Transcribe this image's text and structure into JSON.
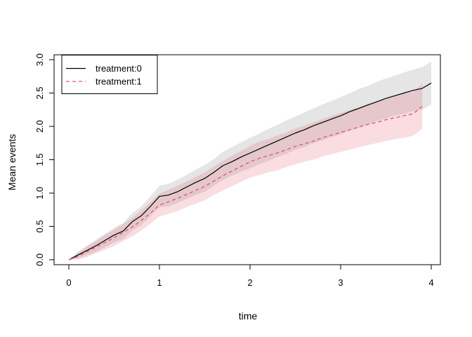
{
  "figure": {
    "xlabel": "time",
    "ylabel": "Mean events"
  },
  "legend": {
    "items": [
      {
        "label": "treatment:0",
        "color": "#000000",
        "style": "solid"
      },
      {
        "label": "treatment:1",
        "color": "#DF536B",
        "style": "dashed"
      }
    ]
  },
  "chart_data": {
    "type": "line",
    "title": "",
    "xlabel": "time",
    "ylabel": "Mean events",
    "legend_position": "topleft",
    "grid": false,
    "x_ticks": [
      0,
      1,
      2,
      3,
      4
    ],
    "x_tick_labels": [
      "0",
      "1",
      "2",
      "3",
      "4"
    ],
    "y_ticks": [
      0,
      0.5,
      1.0,
      1.5,
      2.0,
      2.5,
      3.0
    ],
    "y_tick_labels": [
      "0.0",
      "0.5",
      "1.0",
      "1.5",
      "2.0",
      "2.5",
      "3.0"
    ],
    "xlim": [
      -0.163,
      4.101
    ],
    "ylim": [
      -0.074,
      3.074
    ],
    "series": [
      {
        "name": "treatment:0",
        "color": "#000000",
        "line": "solid",
        "band_color": "rgba(0,0,0,0.10)",
        "x": [
          0,
          0.1,
          0.2,
          0.3,
          0.4,
          0.5,
          0.6,
          0.7,
          0.8,
          0.9,
          1.0,
          1.1,
          1.2,
          1.3,
          1.4,
          1.5,
          1.6,
          1.7,
          1.8,
          1.9,
          2.0,
          2.1,
          2.2,
          2.3,
          2.4,
          2.5,
          2.6,
          2.7,
          2.8,
          2.9,
          3.0,
          3.1,
          3.2,
          3.3,
          3.4,
          3.5,
          3.6,
          3.7,
          3.8,
          3.9,
          4.0
        ],
        "y": [
          0,
          0.07,
          0.14,
          0.21,
          0.29,
          0.37,
          0.43,
          0.57,
          0.66,
          0.8,
          0.95,
          0.97,
          1.02,
          1.09,
          1.16,
          1.22,
          1.31,
          1.41,
          1.47,
          1.54,
          1.6,
          1.66,
          1.72,
          1.78,
          1.84,
          1.9,
          1.95,
          2.01,
          2.06,
          2.11,
          2.16,
          2.22,
          2.27,
          2.32,
          2.37,
          2.42,
          2.46,
          2.5,
          2.54,
          2.57,
          2.65
        ],
        "upper": [
          0,
          0.12,
          0.21,
          0.3,
          0.39,
          0.48,
          0.55,
          0.7,
          0.8,
          0.95,
          1.11,
          1.14,
          1.2,
          1.27,
          1.35,
          1.42,
          1.51,
          1.62,
          1.69,
          1.76,
          1.83,
          1.89,
          1.96,
          2.02,
          2.09,
          2.15,
          2.21,
          2.27,
          2.33,
          2.38,
          2.44,
          2.5,
          2.56,
          2.61,
          2.67,
          2.72,
          2.76,
          2.81,
          2.85,
          2.89,
          2.97
        ],
        "lower": [
          0,
          0.02,
          0.07,
          0.12,
          0.19,
          0.26,
          0.31,
          0.44,
          0.52,
          0.65,
          0.79,
          0.8,
          0.85,
          0.91,
          0.97,
          1.02,
          1.11,
          1.2,
          1.26,
          1.32,
          1.37,
          1.43,
          1.48,
          1.54,
          1.59,
          1.65,
          1.69,
          1.75,
          1.79,
          1.84,
          1.88,
          1.94,
          1.98,
          2.03,
          2.08,
          2.12,
          2.16,
          2.19,
          2.23,
          2.25,
          2.33
        ]
      },
      {
        "name": "treatment:1",
        "color": "#DF536B",
        "line": "dashed",
        "band_color": "rgba(223,83,107,0.20)",
        "x": [
          0,
          0.1,
          0.2,
          0.3,
          0.4,
          0.5,
          0.6,
          0.7,
          0.8,
          0.9,
          1.0,
          1.1,
          1.2,
          1.3,
          1.4,
          1.5,
          1.6,
          1.7,
          1.8,
          1.9,
          2.0,
          2.1,
          2.2,
          2.3,
          2.4,
          2.5,
          2.6,
          2.7,
          2.8,
          2.9,
          3.0,
          3.1,
          3.2,
          3.3,
          3.4,
          3.5,
          3.6,
          3.7,
          3.8,
          3.9
        ],
        "y": [
          0,
          0.05,
          0.12,
          0.19,
          0.26,
          0.33,
          0.41,
          0.49,
          0.59,
          0.7,
          0.82,
          0.87,
          0.92,
          0.98,
          1.04,
          1.1,
          1.18,
          1.26,
          1.33,
          1.4,
          1.47,
          1.52,
          1.56,
          1.6,
          1.65,
          1.7,
          1.74,
          1.78,
          1.83,
          1.87,
          1.91,
          1.95,
          1.99,
          2.03,
          2.06,
          2.1,
          2.13,
          2.16,
          2.19,
          2.3
        ],
        "upper": [
          0,
          0.1,
          0.2,
          0.28,
          0.37,
          0.45,
          0.54,
          0.63,
          0.74,
          0.86,
          0.99,
          1.05,
          1.11,
          1.17,
          1.24,
          1.31,
          1.4,
          1.48,
          1.56,
          1.63,
          1.71,
          1.77,
          1.81,
          1.86,
          1.91,
          1.97,
          2.01,
          2.06,
          2.11,
          2.16,
          2.2,
          2.25,
          2.29,
          2.34,
          2.37,
          2.42,
          2.45,
          2.49,
          2.52,
          2.64
        ],
        "lower": [
          0,
          0.0,
          0.04,
          0.1,
          0.15,
          0.21,
          0.28,
          0.35,
          0.44,
          0.54,
          0.65,
          0.69,
          0.73,
          0.79,
          0.84,
          0.89,
          0.97,
          1.04,
          1.1,
          1.17,
          1.23,
          1.27,
          1.31,
          1.34,
          1.39,
          1.43,
          1.47,
          1.5,
          1.55,
          1.58,
          1.62,
          1.65,
          1.69,
          1.72,
          1.75,
          1.78,
          1.81,
          1.83,
          1.86,
          1.96
        ]
      }
    ]
  }
}
